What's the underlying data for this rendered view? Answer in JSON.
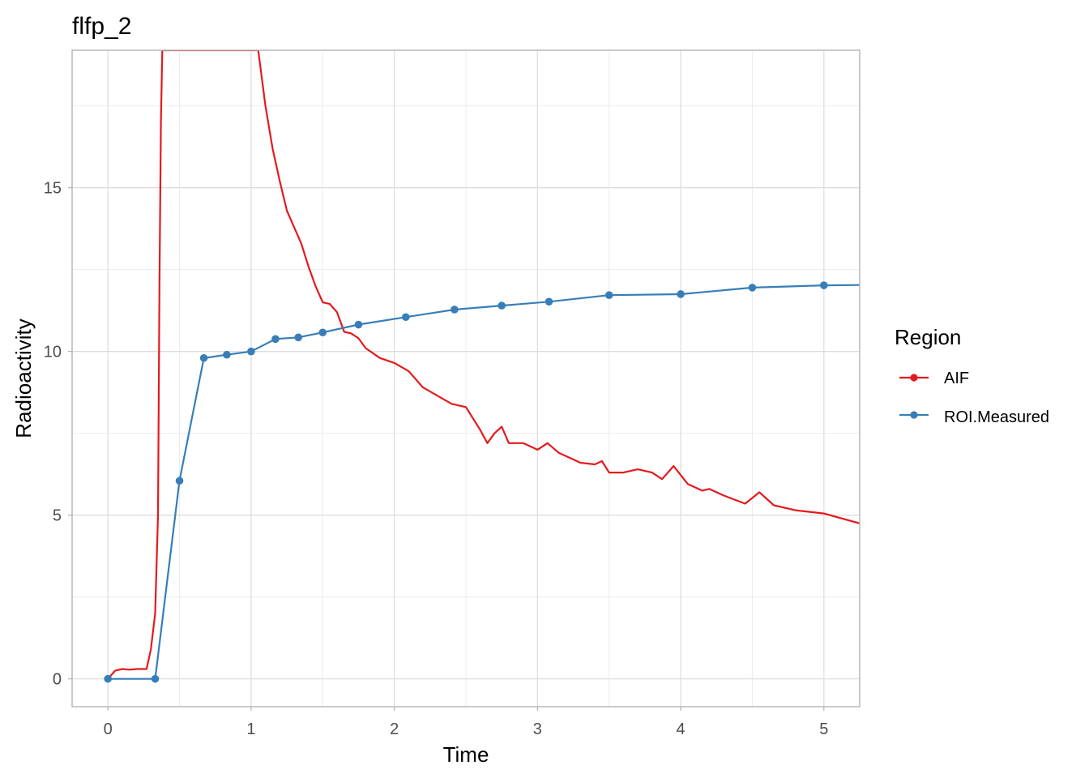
{
  "chart_data": {
    "type": "line",
    "title": "flfp_2",
    "xlabel": "Time",
    "ylabel": "Radioactivity",
    "xlim": [
      -0.25,
      5.25
    ],
    "ylim": [
      -0.85,
      19.2
    ],
    "x_ticks": [
      0,
      1,
      2,
      3,
      4,
      5
    ],
    "y_ticks": [
      0,
      5,
      10,
      15
    ],
    "grid": true,
    "legend": {
      "title": "Region",
      "placement": "right"
    },
    "series": [
      {
        "name": "AIF",
        "color": "#e41a1c",
        "markers": false,
        "x": [
          0,
          0.05,
          0.1,
          0.15,
          0.2,
          0.27,
          0.3,
          0.33,
          0.35,
          0.36,
          0.37,
          0.38,
          0.39,
          0.4,
          1.05,
          1.1,
          1.15,
          1.2,
          1.25,
          1.3,
          1.35,
          1.4,
          1.45,
          1.5,
          1.55,
          1.6,
          1.65,
          1.7,
          1.75,
          1.8,
          1.9,
          2.0,
          2.1,
          2.2,
          2.3,
          2.4,
          2.5,
          2.6,
          2.65,
          2.7,
          2.75,
          2.8,
          2.9,
          3.0,
          3.07,
          3.15,
          3.3,
          3.4,
          3.45,
          3.5,
          3.6,
          3.7,
          3.8,
          3.87,
          3.95,
          4.05,
          4.15,
          4.2,
          4.3,
          4.45,
          4.55,
          4.65,
          4.8,
          5.0,
          5.25
        ],
        "y": [
          0,
          0.25,
          0.3,
          0.28,
          0.3,
          0.3,
          0.9,
          2.0,
          5.0,
          12.0,
          17.0,
          19.2,
          19.2,
          19.2,
          19.2,
          17.5,
          16.2,
          15.2,
          14.3,
          13.8,
          13.3,
          12.6,
          12.0,
          11.5,
          11.45,
          11.2,
          10.6,
          10.55,
          10.4,
          10.1,
          9.8,
          9.65,
          9.4,
          8.9,
          8.65,
          8.4,
          8.3,
          7.6,
          7.2,
          7.5,
          7.7,
          7.2,
          7.2,
          7.0,
          7.2,
          6.9,
          6.6,
          6.55,
          6.65,
          6.3,
          6.3,
          6.4,
          6.3,
          6.1,
          6.5,
          5.95,
          5.75,
          5.8,
          5.6,
          5.35,
          5.7,
          5.3,
          5.15,
          5.05,
          4.75
        ]
      },
      {
        "name": "ROI.Measured",
        "color": "#377eb8",
        "markers": true,
        "x": [
          0,
          0.33,
          0.5,
          0.67,
          0.83,
          1.0,
          1.17,
          1.33,
          1.5,
          1.75,
          2.08,
          2.42,
          2.75,
          3.08,
          3.5,
          4.0,
          4.5,
          5.0,
          5.25
        ],
        "y": [
          0,
          0,
          6.05,
          9.8,
          9.9,
          10.0,
          10.38,
          10.43,
          10.58,
          10.82,
          11.05,
          11.28,
          11.4,
          11.52,
          11.72,
          11.75,
          11.95,
          12.02,
          12.03
        ],
        "marker_points": 18
      }
    ]
  }
}
